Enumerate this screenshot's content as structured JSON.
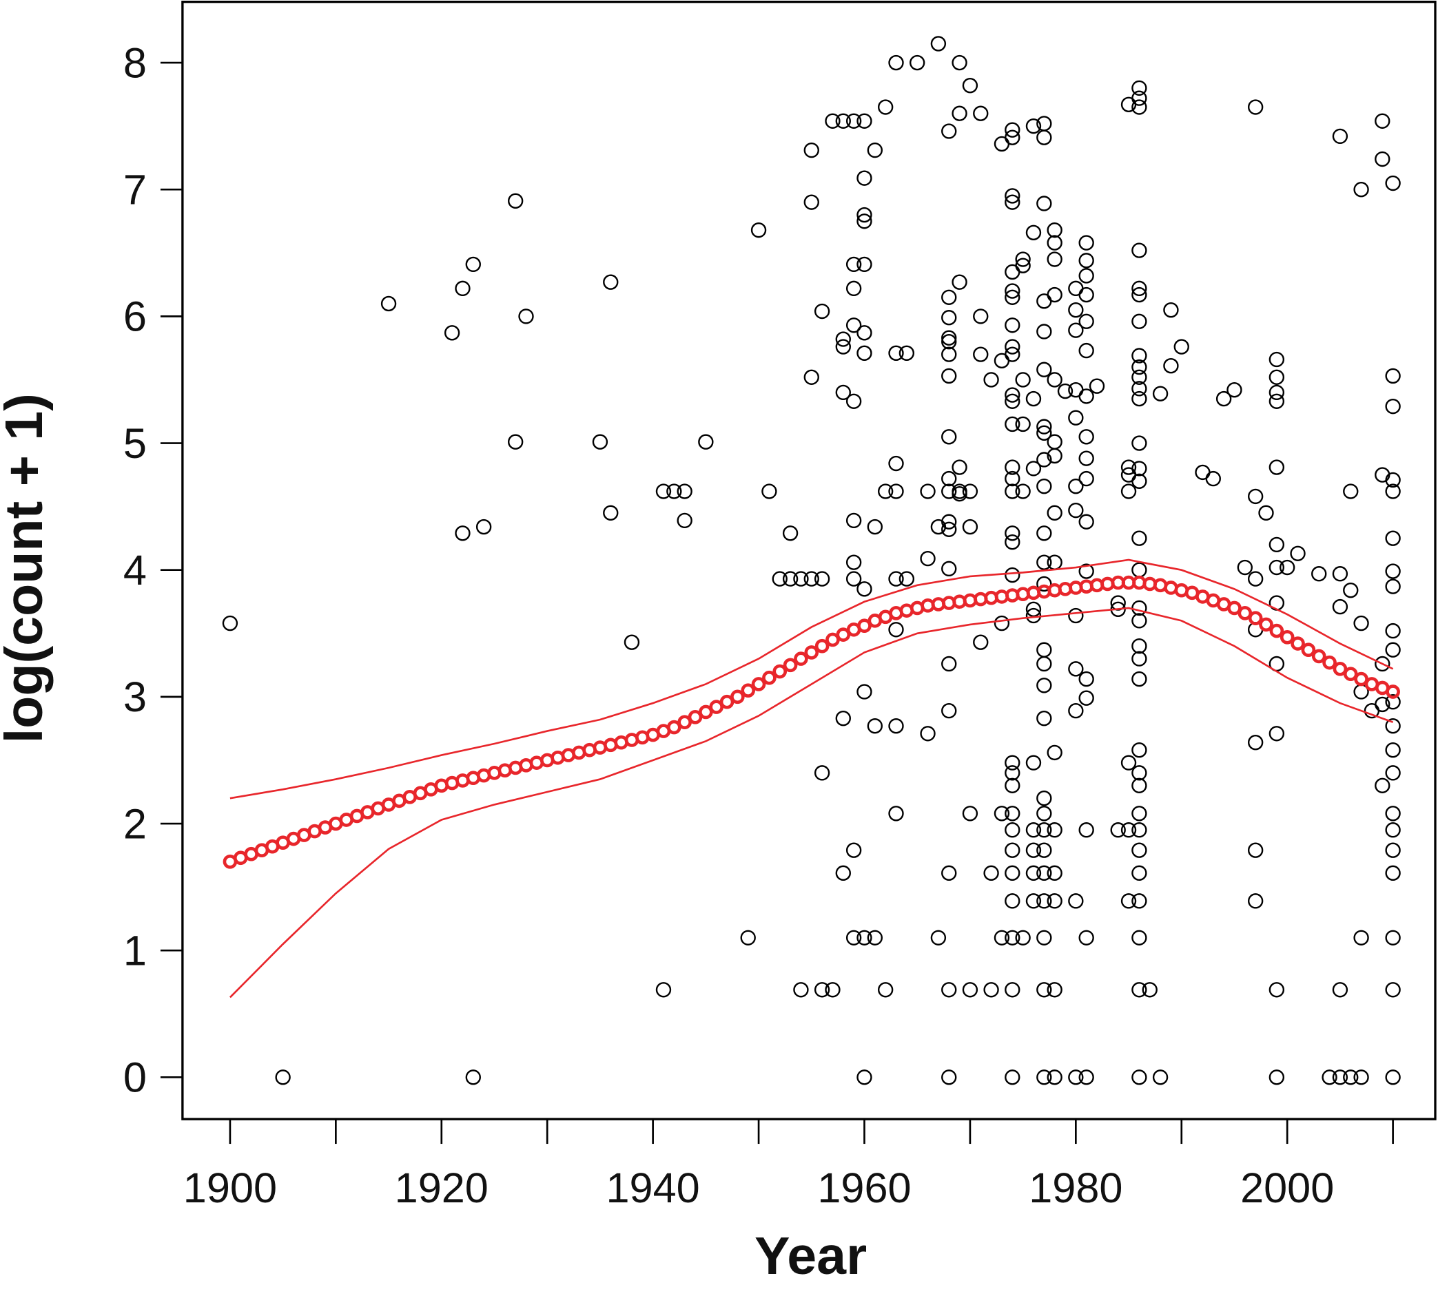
{
  "chart_data": {
    "type": "scatter",
    "x_label": "Year",
    "y_label": "log(count + 1)",
    "xlim": [
      1895.5,
      2014
    ],
    "ylim": [
      -0.33,
      8.48
    ],
    "xticks": [
      1900,
      1920,
      1940,
      1960,
      1980,
      2000
    ],
    "xminorticks": [
      1910,
      1930,
      1950,
      1970,
      1990,
      2010
    ],
    "yticks": [
      0,
      1,
      2,
      3,
      4,
      5,
      6,
      7,
      8
    ],
    "series": [
      {
        "style": "points",
        "color": "#000000",
        "x": [
          1900,
          1905,
          1915,
          1921,
          1922,
          1922,
          1923,
          1923,
          1924,
          1927,
          1927,
          1928,
          1935,
          1936,
          1936,
          1938,
          1941,
          1941,
          1942,
          1943,
          1943,
          1945,
          1949,
          1950,
          1951,
          1952,
          1953,
          1953,
          1954,
          1954,
          1955,
          1955,
          1955,
          1955,
          1956,
          1956,
          1956,
          1956,
          1957,
          1957,
          1958,
          1958,
          1958,
          1958,
          1958,
          1958,
          1959,
          1959,
          1959,
          1959,
          1959,
          1959,
          1959,
          1959,
          1959,
          1959,
          1960,
          1960,
          1960,
          1960,
          1960,
          1960,
          1960,
          1960,
          1960,
          1960,
          1960,
          1961,
          1961,
          1961,
          1961,
          1962,
          1962,
          1962,
          1963,
          1963,
          1963,
          1963,
          1963,
          1963,
          1963,
          1963,
          1964,
          1964,
          1965,
          1966,
          1966,
          1966,
          1967,
          1967,
          1967,
          1968,
          1968,
          1968,
          1968,
          1968,
          1968,
          1968,
          1968,
          1968,
          1968,
          1968,
          1968,
          1968,
          1968,
          1968,
          1968,
          1968,
          1968,
          1969,
          1969,
          1969,
          1969,
          1969,
          1969,
          1970,
          1970,
          1970,
          1970,
          1970,
          1971,
          1971,
          1971,
          1971,
          1972,
          1972,
          1972,
          1973,
          1973,
          1973,
          1973,
          1973,
          1974,
          1974,
          1974,
          1974,
          1974,
          1974,
          1974,
          1974,
          1974,
          1974,
          1974,
          1974,
          1974,
          1974,
          1974,
          1974,
          1974,
          1974,
          1974,
          1974,
          1974,
          1974,
          1974,
          1974,
          1974,
          1974,
          1974,
          1974,
          1974,
          1974,
          1975,
          1975,
          1975,
          1975,
          1975,
          1975,
          1976,
          1976,
          1976,
          1976,
          1976,
          1976,
          1976,
          1976,
          1976,
          1976,
          1976,
          1977,
          1977,
          1977,
          1977,
          1977,
          1977,
          1977,
          1977,
          1977,
          1977,
          1977,
          1977,
          1977,
          1977,
          1977,
          1977,
          1977,
          1977,
          1977,
          1977,
          1977,
          1977,
          1977,
          1977,
          1977,
          1977,
          1978,
          1978,
          1978,
          1978,
          1978,
          1978,
          1978,
          1978,
          1978,
          1978,
          1978,
          1978,
          1978,
          1978,
          1978,
          1979,
          1980,
          1980,
          1980,
          1980,
          1980,
          1980,
          1980,
          1980,
          1980,
          1980,
          1980,
          1980,
          1981,
          1981,
          1981,
          1981,
          1981,
          1981,
          1981,
          1981,
          1981,
          1981,
          1981,
          1981,
          1981,
          1981,
          1981,
          1981,
          1981,
          1982,
          1984,
          1984,
          1984,
          1985,
          1985,
          1985,
          1985,
          1985,
          1985,
          1985,
          1986,
          1986,
          1986,
          1986,
          1986,
          1986,
          1986,
          1986,
          1986,
          1986,
          1986,
          1986,
          1986,
          1986,
          1986,
          1986,
          1986,
          1986,
          1986,
          1986,
          1986,
          1986,
          1986,
          1986,
          1986,
          1986,
          1986,
          1986,
          1986,
          1986,
          1986,
          1986,
          1986,
          1987,
          1988,
          1988,
          1989,
          1989,
          1990,
          1992,
          1993,
          1994,
          1995,
          1996,
          1997,
          1997,
          1997,
          1997,
          1997,
          1997,
          1997,
          1998,
          1999,
          1999,
          1999,
          1999,
          1999,
          1999,
          1999,
          1999,
          1999,
          1999,
          1999,
          1999,
          2000,
          2001,
          2003,
          2004,
          2005,
          2005,
          2005,
          2005,
          2005,
          2006,
          2006,
          2006,
          2007,
          2007,
          2007,
          2007,
          2007,
          2008,
          2009,
          2009,
          2009,
          2009,
          2009,
          2009,
          2010,
          2010,
          2010,
          2010,
          2010,
          2010,
          2010,
          2010,
          2010,
          2010,
          2010,
          2010,
          2010,
          2010,
          2010,
          2010,
          2010,
          2010,
          2010,
          2010,
          2010
        ],
        "values": [
          3.58,
          0,
          6.1,
          5.87,
          6.22,
          4.29,
          6.41,
          0,
          4.34,
          6.91,
          5.01,
          6.0,
          5.01,
          6.27,
          4.45,
          3.43,
          4.62,
          0.69,
          4.62,
          4.62,
          4.39,
          5.01,
          1.1,
          6.68,
          4.62,
          3.93,
          4.29,
          3.93,
          3.93,
          0.69,
          7.31,
          6.9,
          5.52,
          3.93,
          6.04,
          3.93,
          2.4,
          0.69,
          7.54,
          0.69,
          7.54,
          5.82,
          5.76,
          5.4,
          2.83,
          1.61,
          7.54,
          6.41,
          6.22,
          5.93,
          5.33,
          4.39,
          4.06,
          3.93,
          1.79,
          1.1,
          7.54,
          7.09,
          6.8,
          6.75,
          6.41,
          5.87,
          5.71,
          3.85,
          3.04,
          1.1,
          0,
          7.31,
          4.34,
          2.77,
          1.1,
          7.65,
          4.62,
          0.69,
          8.0,
          5.71,
          4.84,
          4.62,
          3.93,
          3.53,
          2.77,
          2.08,
          5.71,
          3.93,
          8.0,
          4.62,
          4.09,
          2.71,
          8.15,
          4.34,
          1.1,
          7.46,
          6.15,
          5.99,
          5.83,
          5.8,
          5.7,
          5.53,
          5.05,
          4.72,
          4.62,
          4.38,
          4.32,
          4.01,
          3.26,
          2.89,
          1.61,
          0.69,
          0,
          8.0,
          7.6,
          6.27,
          4.81,
          4.62,
          4.6,
          7.82,
          4.62,
          4.34,
          2.08,
          0.69,
          7.6,
          6.0,
          5.7,
          3.43,
          5.5,
          1.61,
          0.69,
          7.36,
          5.65,
          3.58,
          2.08,
          1.1,
          7.47,
          7.41,
          6.95,
          6.9,
          6.35,
          6.2,
          6.15,
          5.93,
          5.76,
          5.7,
          5.38,
          5.33,
          5.15,
          4.81,
          4.72,
          4.62,
          4.29,
          4.22,
          3.96,
          2.48,
          2.4,
          2.3,
          2.08,
          1.95,
          1.79,
          1.61,
          1.39,
          1.1,
          0.69,
          0,
          6.45,
          6.4,
          5.5,
          5.15,
          4.62,
          1.1,
          7.5,
          6.66,
          5.35,
          4.8,
          3.69,
          3.64,
          2.48,
          1.95,
          1.79,
          1.61,
          1.39,
          7.52,
          7.41,
          6.89,
          6.12,
          5.88,
          5.58,
          5.13,
          5.08,
          4.87,
          4.66,
          4.29,
          4.06,
          3.89,
          3.37,
          3.26,
          3.09,
          2.83,
          2.2,
          2.08,
          1.95,
          1.79,
          1.61,
          1.39,
          1.1,
          0.69,
          0,
          6.68,
          6.58,
          6.45,
          6.17,
          5.5,
          5.01,
          4.9,
          4.45,
          4.06,
          2.56,
          1.95,
          1.61,
          1.39,
          0.69,
          0,
          5.41,
          6.22,
          6.05,
          5.89,
          5.42,
          5.2,
          4.66,
          4.47,
          3.64,
          3.22,
          2.89,
          1.39,
          0,
          6.58,
          6.44,
          6.32,
          6.17,
          5.96,
          5.73,
          5.37,
          5.05,
          4.88,
          4.72,
          4.38,
          3.99,
          3.14,
          2.99,
          1.95,
          1.1,
          0,
          5.45,
          3.74,
          3.69,
          1.95,
          7.67,
          4.81,
          4.75,
          4.62,
          2.48,
          1.95,
          1.39,
          7.8,
          7.72,
          7.65,
          6.52,
          6.22,
          6.17,
          5.96,
          5.69,
          5.6,
          5.52,
          5.43,
          5.35,
          5.0,
          4.8,
          4.7,
          4.25,
          4.0,
          3.7,
          3.6,
          3.4,
          3.3,
          3.14,
          2.58,
          2.4,
          2.3,
          2.08,
          1.95,
          1.79,
          1.61,
          1.39,
          1.1,
          0.69,
          0,
          0.69,
          5.39,
          0,
          6.05,
          5.61,
          5.76,
          4.77,
          4.72,
          5.35,
          5.42,
          4.02,
          7.65,
          4.58,
          3.53,
          3.93,
          2.64,
          1.79,
          1.39,
          4.45,
          5.66,
          5.52,
          5.4,
          5.33,
          4.81,
          4.2,
          4.02,
          3.74,
          3.26,
          2.71,
          0.69,
          0,
          4.02,
          4.13,
          3.97,
          0,
          7.42,
          3.97,
          3.71,
          0.69,
          0,
          4.62,
          3.84,
          0,
          7.0,
          3.58,
          3.04,
          1.1,
          0,
          2.89,
          7.54,
          7.24,
          4.75,
          3.26,
          2.94,
          2.3,
          7.05,
          5.53,
          5.29,
          4.71,
          4.62,
          4.25,
          3.99,
          3.87,
          3.52,
          3.37,
          2.96,
          2.77,
          2.58,
          2.4,
          2.08,
          1.95,
          1.79,
          1.61,
          1.1,
          0.69,
          0
        ]
      },
      {
        "style": "points",
        "color": "#e8262b",
        "x": [
          1900,
          1901,
          1902,
          1903,
          1904,
          1905,
          1906,
          1907,
          1908,
          1909,
          1910,
          1911,
          1912,
          1913,
          1914,
          1915,
          1916,
          1917,
          1918,
          1919,
          1920,
          1921,
          1922,
          1923,
          1924,
          1925,
          1926,
          1927,
          1928,
          1929,
          1930,
          1931,
          1932,
          1933,
          1934,
          1935,
          1936,
          1937,
          1938,
          1939,
          1940,
          1941,
          1942,
          1943,
          1944,
          1945,
          1946,
          1947,
          1948,
          1949,
          1950,
          1951,
          1952,
          1953,
          1954,
          1955,
          1956,
          1957,
          1958,
          1959,
          1960,
          1961,
          1962,
          1963,
          1964,
          1965,
          1966,
          1967,
          1968,
          1969,
          1970,
          1971,
          1972,
          1973,
          1974,
          1975,
          1976,
          1977,
          1978,
          1979,
          1980,
          1981,
          1982,
          1983,
          1984,
          1985,
          1986,
          1987,
          1988,
          1989,
          1990,
          1991,
          1992,
          1993,
          1994,
          1995,
          1996,
          1997,
          1998,
          1999,
          2000,
          2001,
          2002,
          2003,
          2004,
          2005,
          2006,
          2007,
          2008,
          2009,
          2010
        ],
        "values": [
          1.7,
          1.73,
          1.76,
          1.79,
          1.82,
          1.85,
          1.88,
          1.91,
          1.94,
          1.97,
          2.0,
          2.03,
          2.06,
          2.09,
          2.12,
          2.15,
          2.18,
          2.21,
          2.24,
          2.27,
          2.3,
          2.32,
          2.34,
          2.36,
          2.38,
          2.4,
          2.42,
          2.44,
          2.46,
          2.48,
          2.5,
          2.52,
          2.54,
          2.56,
          2.58,
          2.6,
          2.62,
          2.64,
          2.66,
          2.68,
          2.7,
          2.73,
          2.76,
          2.8,
          2.84,
          2.88,
          2.92,
          2.96,
          3.0,
          3.05,
          3.1,
          3.15,
          3.2,
          3.25,
          3.3,
          3.35,
          3.4,
          3.45,
          3.49,
          3.53,
          3.56,
          3.6,
          3.63,
          3.66,
          3.68,
          3.7,
          3.72,
          3.73,
          3.74,
          3.75,
          3.76,
          3.77,
          3.78,
          3.79,
          3.8,
          3.81,
          3.82,
          3.83,
          3.84,
          3.85,
          3.86,
          3.87,
          3.88,
          3.89,
          3.9,
          3.9,
          3.9,
          3.89,
          3.88,
          3.86,
          3.84,
          3.82,
          3.79,
          3.76,
          3.73,
          3.7,
          3.66,
          3.62,
          3.57,
          3.52,
          3.47,
          3.42,
          3.37,
          3.32,
          3.27,
          3.22,
          3.18,
          3.14,
          3.1,
          3.07,
          3.04
        ]
      },
      {
        "style": "line",
        "color": "#e8262b",
        "x": [
          1900,
          1905,
          1910,
          1915,
          1920,
          1925,
          1930,
          1935,
          1940,
          1945,
          1950,
          1955,
          1960,
          1965,
          1970,
          1975,
          1980,
          1985,
          1990,
          1995,
          2000,
          2005,
          2010
        ],
        "values": [
          2.2,
          2.27,
          2.35,
          2.44,
          2.54,
          2.63,
          2.73,
          2.82,
          2.95,
          3.1,
          3.3,
          3.55,
          3.75,
          3.88,
          3.95,
          3.98,
          4.02,
          4.08,
          4.0,
          3.85,
          3.65,
          3.42,
          3.22
        ]
      },
      {
        "style": "line",
        "color": "#e8262b",
        "x": [
          1900,
          1905,
          1910,
          1915,
          1920,
          1925,
          1930,
          1935,
          1940,
          1945,
          1950,
          1955,
          1960,
          1965,
          1970,
          1975,
          1980,
          1985,
          1990,
          1995,
          2000,
          2005,
          2010
        ],
        "values": [
          0.63,
          1.05,
          1.45,
          1.8,
          2.03,
          2.15,
          2.25,
          2.35,
          2.5,
          2.65,
          2.85,
          3.1,
          3.35,
          3.5,
          3.57,
          3.62,
          3.66,
          3.7,
          3.6,
          3.4,
          3.15,
          2.95,
          2.8
        ]
      }
    ]
  }
}
